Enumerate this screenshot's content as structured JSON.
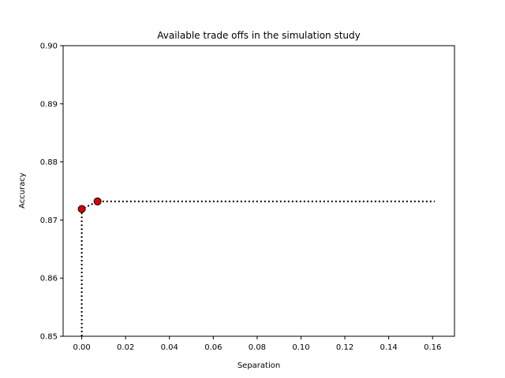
{
  "chart_data": {
    "type": "scatter",
    "title": "Available trade offs in the simulation study",
    "xlabel": "Separation",
    "ylabel": "Accuracy",
    "xlim": [
      -0.0085,
      0.17
    ],
    "ylim": [
      0.85,
      0.9
    ],
    "x_ticks": [
      "0.00",
      "0.02",
      "0.04",
      "0.06",
      "0.08",
      "0.10",
      "0.12",
      "0.14",
      "0.16"
    ],
    "x_tick_values": [
      0.0,
      0.02,
      0.04,
      0.06,
      0.08,
      0.1,
      0.12,
      0.14,
      0.16
    ],
    "y_ticks": [
      "0.85",
      "0.86",
      "0.87",
      "0.88",
      "0.89",
      "0.90"
    ],
    "y_tick_values": [
      0.85,
      0.86,
      0.87,
      0.88,
      0.89,
      0.9
    ],
    "points": [
      {
        "x": 0.0,
        "y": 0.8719
      },
      {
        "x": 0.0072,
        "y": 0.8732
      }
    ],
    "frontier_line": {
      "style": "dotted",
      "color": "#000000",
      "x": [
        0.0,
        0.0,
        0.0072,
        0.161
      ],
      "y": [
        0.85,
        0.8719,
        0.8732,
        0.8732
      ]
    },
    "point_color": "#dd0000",
    "point_edge_color": "#000000",
    "grid": false,
    "legend": "none"
  }
}
